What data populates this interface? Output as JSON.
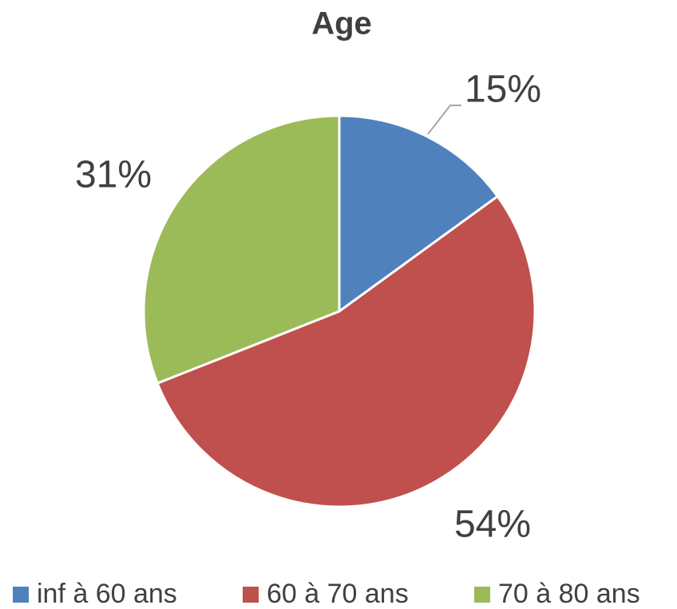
{
  "chart_data": {
    "type": "pie",
    "title": "Age",
    "categories": [
      "inf à 60 ans",
      "60 à 70 ans",
      "70 à 80 ans"
    ],
    "values": [
      15,
      54,
      31
    ],
    "value_labels": [
      "15%",
      "54%",
      "31%"
    ],
    "colors": [
      "#4f81bd",
      "#c0504d",
      "#9bbb59"
    ],
    "legend": "bottom"
  }
}
